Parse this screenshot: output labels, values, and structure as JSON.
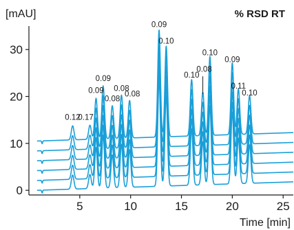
{
  "chart_data": {
    "type": "line",
    "title": "% RSD RT",
    "ylabel": "[mAU]",
    "xlabel": "Time [min]",
    "xlim": [
      0,
      26
    ],
    "ylim": [
      -1,
      35
    ],
    "x_ticks": [
      5,
      10,
      15,
      20,
      25
    ],
    "y_ticks": [
      0,
      10,
      20,
      30
    ],
    "trace_color": "#1a9fd8",
    "trace_count": 6,
    "trace_offsets": [
      0,
      2.1,
      4.2,
      6.3,
      8.4,
      10.5
    ],
    "baseline_drift": 1.8,
    "peaks": [
      {
        "time": 4.3,
        "height": 13.5,
        "rsd": "0.12"
      },
      {
        "time": 6.0,
        "height": 13.5,
        "rsd": "0.17"
      },
      {
        "time": 6.6,
        "height": 19.2,
        "rsd": "0.09"
      },
      {
        "time": 7.3,
        "height": 21.8,
        "rsd": "0.09"
      },
      {
        "time": 8.2,
        "height": 17.5,
        "rsd": "0.08"
      },
      {
        "time": 9.1,
        "height": 19.7,
        "rsd": "0.08"
      },
      {
        "time": 9.9,
        "height": 18.5,
        "rsd": "0.08"
      },
      {
        "time": 12.8,
        "height": 33.3,
        "rsd": "0.09"
      },
      {
        "time": 13.5,
        "height": 29.8,
        "rsd": "0.10"
      },
      {
        "time": 16.0,
        "height": 22.5,
        "rsd": "0.10"
      },
      {
        "time": 17.1,
        "height": 19.7,
        "rsd": "0.08"
      },
      {
        "time": 17.8,
        "height": 27.3,
        "rsd": "0.10"
      },
      {
        "time": 20.0,
        "height": 25.8,
        "rsd": "0.09"
      },
      {
        "time": 20.6,
        "height": 20.2,
        "rsd": "0.11"
      },
      {
        "time": 21.7,
        "height": 18.7,
        "rsd": "0.10"
      }
    ]
  }
}
